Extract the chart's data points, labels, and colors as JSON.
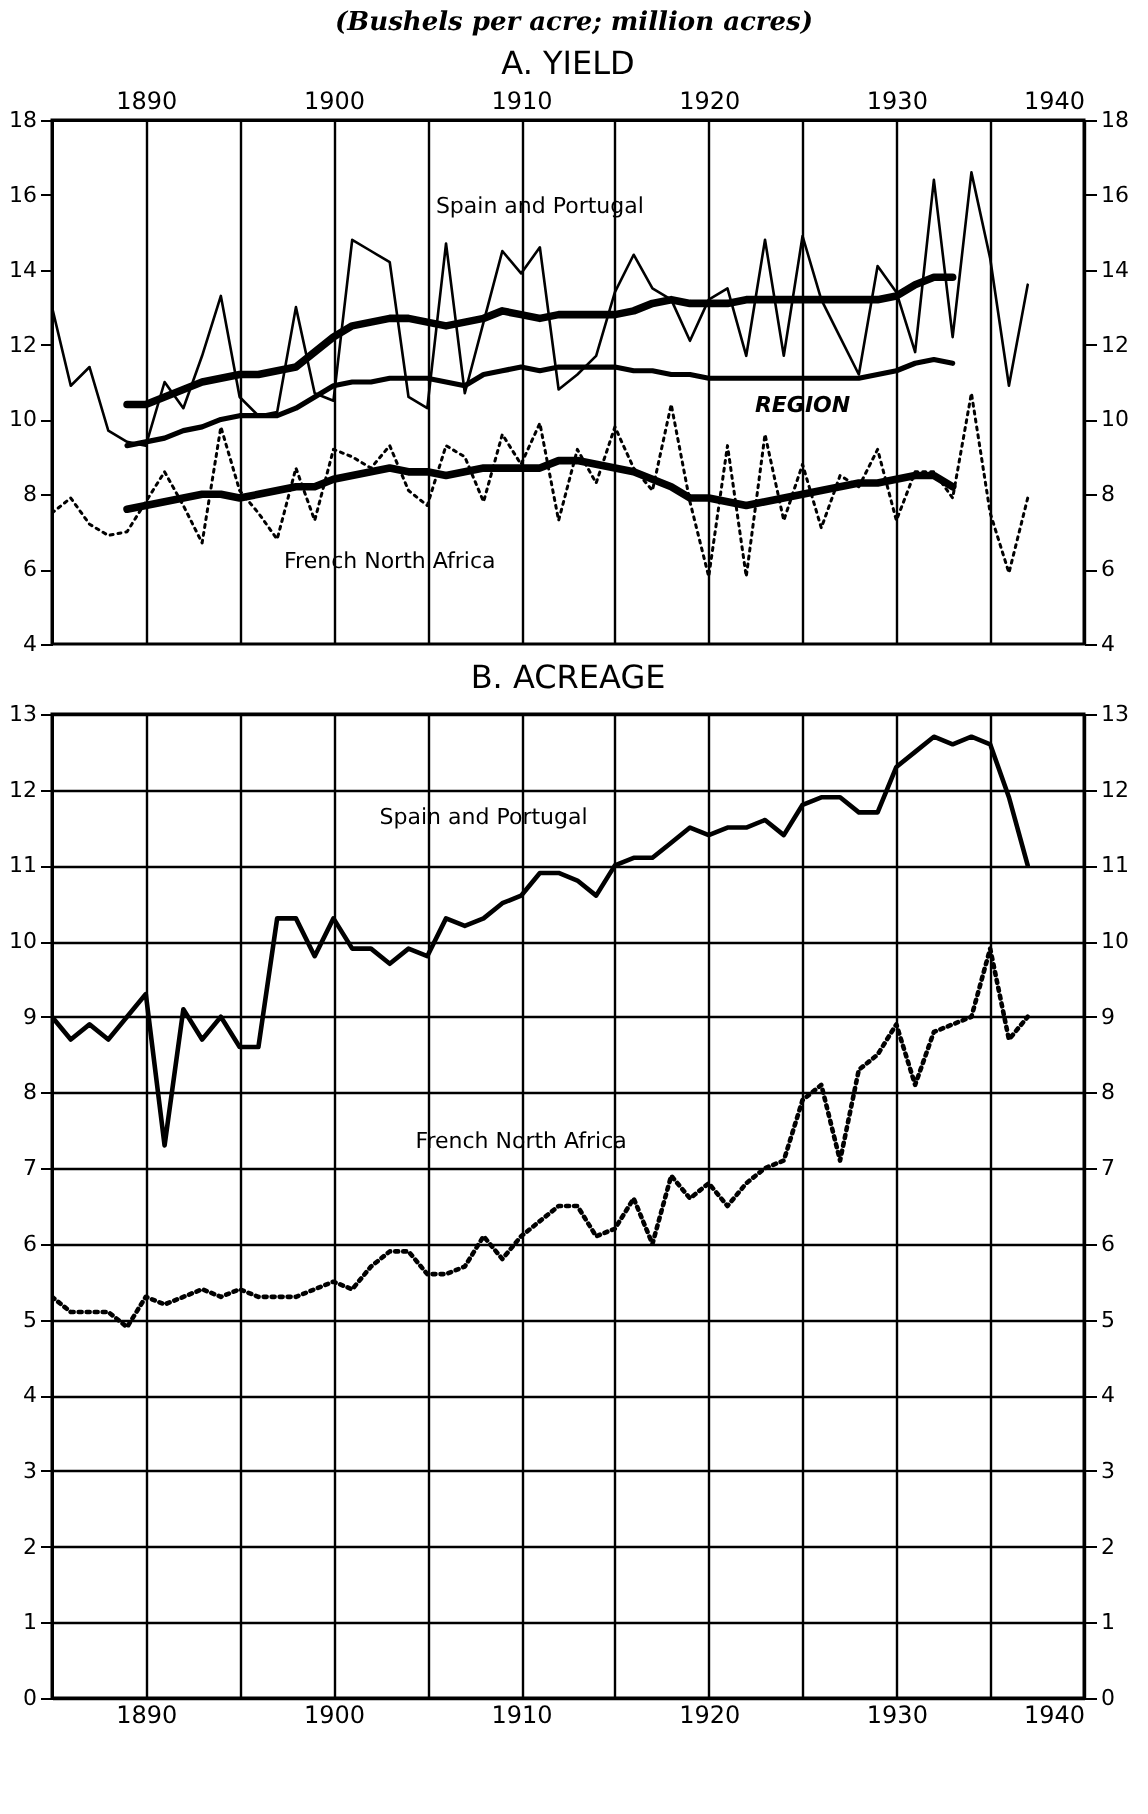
{
  "chart_data": [
    {
      "type": "line",
      "subtitle": "(Bushels per acre; million acres)",
      "title": "A. YIELD",
      "xlim": [
        1885,
        1940
      ],
      "xticks": [
        1890,
        {
          "value": 1895,
          "label": null
        },
        1900,
        {
          "value": 1905,
          "label": null
        },
        1910,
        {
          "value": 1915,
          "label": null
        },
        1920,
        {
          "value": 1925,
          "label": null
        },
        1930,
        {
          "value": 1935,
          "label": null
        },
        1940
      ],
      "ylim": [
        4,
        18
      ],
      "yticks": [
        4,
        6,
        8,
        10,
        12,
        14,
        16,
        18
      ],
      "y2lim": [
        4,
        18
      ],
      "y2ticks": [
        4,
        6,
        8,
        10,
        12,
        14,
        16,
        18
      ],
      "grid": "x",
      "x": [
        1885,
        1886,
        1887,
        1888,
        1889,
        1890,
        1891,
        1892,
        1893,
        1894,
        1895,
        1896,
        1897,
        1898,
        1899,
        1900,
        1901,
        1902,
        1903,
        1904,
        1905,
        1906,
        1907,
        1908,
        1909,
        1910,
        1911,
        1912,
        1913,
        1914,
        1915,
        1916,
        1917,
        1918,
        1919,
        1920,
        1921,
        1922,
        1923,
        1924,
        1925,
        1926,
        1927,
        1928,
        1929,
        1930,
        1931,
        1932,
        1933,
        1934,
        1935,
        1936,
        1937
      ],
      "series": [
        {
          "name": "Spain and Portugal",
          "color": "#000000",
          "line_style": "solid",
          "values": [
            13.0,
            10.9,
            11.4,
            9.7,
            9.4,
            9.3,
            11.0,
            10.3,
            11.7,
            13.3,
            10.6,
            10.1,
            10.2,
            13.0,
            10.7,
            10.5,
            14.8,
            14.5,
            14.2,
            10.6,
            10.3,
            14.7,
            10.7,
            12.6,
            14.5,
            13.9,
            14.6,
            10.8,
            11.2,
            11.7,
            13.4,
            14.4,
            13.5,
            13.2,
            12.1,
            13.2,
            13.5,
            11.7,
            14.8,
            11.7,
            14.9,
            13.2,
            12.2,
            11.2,
            14.1,
            13.4,
            11.8,
            16.4,
            12.2,
            16.6,
            14.3,
            10.9,
            13.6
          ]
        },
        {
          "color": "#000000",
          "line_style": "solid",
          "x": [
            1889,
            1890,
            1891,
            1892,
            1893,
            1894,
            1895,
            1896,
            1897,
            1898,
            1899,
            1900,
            1901,
            1902,
            1903,
            1904,
            1905,
            1906,
            1907,
            1908,
            1909,
            1910,
            1911,
            1912,
            1913,
            1914,
            1915,
            1916,
            1917,
            1918,
            1919,
            1920,
            1921,
            1922,
            1923,
            1924,
            1925,
            1926,
            1927,
            1928,
            1929,
            1930,
            1931,
            1932,
            1933
          ],
          "values": [
            10.4,
            10.4,
            10.6,
            10.8,
            11.0,
            11.1,
            11.2,
            11.2,
            11.3,
            11.4,
            11.8,
            12.2,
            12.5,
            12.6,
            12.7,
            12.7,
            12.6,
            12.5,
            12.6,
            12.7,
            12.9,
            12.8,
            12.7,
            12.8,
            12.8,
            12.8,
            12.8,
            12.9,
            13.1,
            13.2,
            13.1,
            13.1,
            13.1,
            13.2,
            13.2,
            13.2,
            13.2,
            13.2,
            13.2,
            13.2,
            13.2,
            13.3,
            13.6,
            13.8,
            13.8
          ]
        },
        {
          "name": "REGION",
          "color": "#000000",
          "line_style": "solid",
          "x": [
            1889,
            1890,
            1891,
            1892,
            1893,
            1894,
            1895,
            1896,
            1897,
            1898,
            1899,
            1900,
            1901,
            1902,
            1903,
            1904,
            1905,
            1906,
            1907,
            1908,
            1909,
            1910,
            1911,
            1912,
            1913,
            1914,
            1915,
            1916,
            1917,
            1918,
            1919,
            1920,
            1921,
            1922,
            1923,
            1924,
            1925,
            1926,
            1927,
            1928,
            1929,
            1930,
            1931,
            1932,
            1933
          ],
          "values": [
            9.3,
            9.4,
            9.5,
            9.7,
            9.8,
            10.0,
            10.1,
            10.1,
            10.1,
            10.3,
            10.6,
            10.9,
            11.0,
            11.0,
            11.1,
            11.1,
            11.1,
            11.0,
            10.9,
            11.2,
            11.3,
            11.4,
            11.3,
            11.4,
            11.4,
            11.4,
            11.4,
            11.3,
            11.3,
            11.2,
            11.2,
            11.1,
            11.1,
            11.1,
            11.1,
            11.1,
            11.1,
            11.1,
            11.1,
            11.1,
            11.2,
            11.3,
            11.5,
            11.6,
            11.5
          ]
        },
        {
          "name": "French North Africa",
          "color": "#000000",
          "line_style": "dotted",
          "values": [
            7.5,
            7.9,
            7.2,
            6.9,
            7.0,
            7.8,
            8.6,
            7.7,
            6.7,
            9.8,
            8.1,
            7.5,
            6.8,
            8.7,
            7.3,
            9.2,
            9.0,
            8.7,
            9.3,
            8.1,
            7.7,
            9.3,
            9.0,
            7.8,
            9.6,
            8.8,
            9.9,
            7.3,
            9.2,
            8.3,
            9.8,
            8.7,
            8.1,
            10.4,
            7.8,
            5.8,
            9.3,
            5.8,
            9.6,
            7.3,
            8.8,
            7.1,
            8.5,
            8.2,
            9.2,
            7.3,
            8.6,
            8.6,
            7.9,
            10.7,
            7.5,
            5.9,
            7.9
          ]
        },
        {
          "color": "#000000",
          "line_style": "solid",
          "x": [
            1889,
            1890,
            1891,
            1892,
            1893,
            1894,
            1895,
            1896,
            1897,
            1898,
            1899,
            1900,
            1901,
            1902,
            1903,
            1904,
            1905,
            1906,
            1907,
            1908,
            1909,
            1910,
            1911,
            1912,
            1913,
            1914,
            1915,
            1916,
            1917,
            1918,
            1919,
            1920,
            1921,
            1922,
            1923,
            1924,
            1925,
            1926,
            1927,
            1928,
            1929,
            1930,
            1931,
            1932,
            1933
          ],
          "values": [
            7.6,
            7.7,
            7.8,
            7.9,
            8.0,
            8.0,
            7.9,
            8.0,
            8.1,
            8.2,
            8.2,
            8.4,
            8.5,
            8.6,
            8.7,
            8.6,
            8.6,
            8.5,
            8.6,
            8.7,
            8.7,
            8.7,
            8.7,
            8.9,
            8.9,
            8.8,
            8.7,
            8.6,
            8.4,
            8.2,
            7.9,
            7.9,
            7.8,
            7.7,
            7.8,
            7.9,
            8.0,
            8.1,
            8.2,
            8.3,
            8.3,
            8.4,
            8.5,
            8.5,
            8.2
          ]
        }
      ]
    },
    {
      "type": "line",
      "title": "B. ACREAGE",
      "xlim": [
        1885,
        1940
      ],
      "xticks": [
        1890,
        {
          "value": 1895,
          "label": null
        },
        1900,
        {
          "value": 1905,
          "label": null
        },
        1910,
        {
          "value": 1915,
          "label": null
        },
        1920,
        {
          "value": 1925,
          "label": null
        },
        1930,
        {
          "value": 1935,
          "label": null
        },
        1940
      ],
      "ylim": [
        0,
        13
      ],
      "yticks": [
        0,
        1,
        2,
        3,
        4,
        5,
        6,
        7,
        8,
        9,
        10,
        11,
        12,
        13
      ],
      "y2lim": [
        0,
        13
      ],
      "y2ticks": [
        0,
        1,
        2,
        3,
        4,
        5,
        6,
        7,
        8,
        9,
        10,
        11,
        12,
        13
      ],
      "grid": true,
      "x": [
        1885,
        1886,
        1887,
        1888,
        1889,
        1890,
        1891,
        1892,
        1893,
        1894,
        1895,
        1896,
        1897,
        1898,
        1899,
        1900,
        1901,
        1902,
        1903,
        1904,
        1905,
        1906,
        1907,
        1908,
        1909,
        1910,
        1911,
        1912,
        1913,
        1914,
        1915,
        1916,
        1917,
        1918,
        1919,
        1920,
        1921,
        1922,
        1923,
        1924,
        1925,
        1926,
        1927,
        1928,
        1929,
        1930,
        1931,
        1932,
        1933,
        1934,
        1935,
        1936,
        1937
      ],
      "series": [
        {
          "name": "Spain and Portugal",
          "color": "#000000",
          "line_style": "solid",
          "values": [
            9.0,
            8.7,
            8.9,
            8.7,
            9.0,
            9.3,
            7.3,
            9.1,
            8.7,
            9.0,
            8.6,
            8.6,
            10.3,
            10.3,
            9.8,
            10.3,
            9.9,
            9.9,
            9.7,
            9.9,
            9.8,
            10.3,
            10.2,
            10.3,
            10.5,
            10.6,
            10.9,
            10.9,
            10.8,
            10.6,
            11.0,
            11.1,
            11.1,
            11.3,
            11.5,
            11.4,
            11.5,
            11.5,
            11.6,
            11.4,
            11.8,
            11.9,
            11.9,
            11.7,
            11.7,
            12.3,
            12.5,
            12.7,
            12.6,
            12.7,
            12.6,
            11.9,
            11.0
          ]
        },
        {
          "name": "French North Africa",
          "color": "#000000",
          "line_style": "dotted",
          "values": [
            5.3,
            5.1,
            5.1,
            5.1,
            4.9,
            5.3,
            5.2,
            5.3,
            5.4,
            5.3,
            5.4,
            5.3,
            5.3,
            5.3,
            5.4,
            5.5,
            5.4,
            5.7,
            5.9,
            5.9,
            5.6,
            5.6,
            5.7,
            6.1,
            5.8,
            6.1,
            6.3,
            6.5,
            6.5,
            6.1,
            6.2,
            6.6,
            6.0,
            6.9,
            6.6,
            6.8,
            6.5,
            6.8,
            7.0,
            7.1,
            7.9,
            8.1,
            7.1,
            8.3,
            8.5,
            8.9,
            8.1,
            8.8,
            8.9,
            9.0,
            9.9,
            8.7,
            9.0
          ]
        }
      ]
    }
  ]
}
